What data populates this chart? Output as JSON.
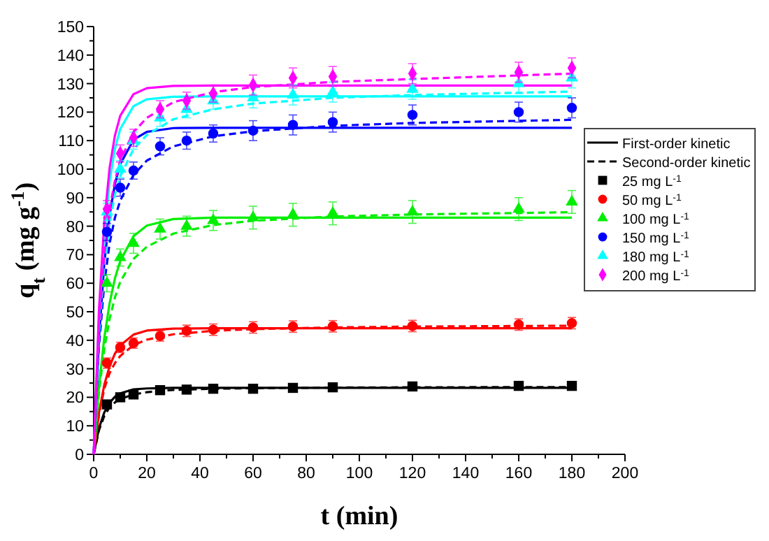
{
  "chart_data": {
    "type": "scatter",
    "xlabel": "t (min)",
    "ylabel": "q$_{t}$ (mg g$^{-1}$)",
    "xlim": [
      0,
      200
    ],
    "ylim": [
      0,
      150
    ],
    "xticks": [
      0,
      20,
      40,
      60,
      80,
      100,
      120,
      140,
      160,
      180,
      200
    ],
    "yticks": [
      0,
      10,
      20,
      30,
      40,
      50,
      60,
      70,
      80,
      90,
      100,
      110,
      120,
      130,
      140,
      150
    ],
    "grid": false,
    "legend": "right",
    "series": [
      {
        "type": "line",
        "name": "First-order kinetic",
        "color": "#000000",
        "line_style": "solid",
        "x": [
          0,
          2,
          4,
          6,
          8,
          10,
          15,
          20,
          30,
          45,
          60,
          90,
          120,
          180
        ],
        "values": [
          0,
          9.2,
          14.7,
          18.1,
          20.2,
          21.4,
          22.8,
          23.1,
          23.3,
          23.3,
          23.3,
          23.3,
          23.3,
          23.3
        ]
      },
      {
        "type": "line",
        "name": "Second-order kinetic",
        "color": "#000000",
        "line_style": "dashed",
        "x": [
          0,
          2,
          4,
          6,
          8,
          10,
          15,
          20,
          30,
          45,
          60,
          90,
          120,
          180
        ],
        "values": [
          0,
          8.5,
          13.5,
          16.5,
          18.2,
          19.4,
          21.0,
          21.8,
          22.6,
          23.0,
          23.2,
          23.4,
          23.5,
          23.6
        ]
      },
      {
        "type": "line",
        "color": "#ff0000",
        "line_style": "solid",
        "x": [
          0,
          2,
          4,
          6,
          8,
          10,
          15,
          20,
          30,
          45,
          60,
          90,
          120,
          180
        ],
        "values": [
          0,
          14.6,
          24.4,
          30.9,
          35.3,
          38.2,
          42.0,
          43.4,
          44.1,
          44.2,
          44.2,
          44.2,
          44.2,
          44.2
        ]
      },
      {
        "type": "line",
        "color": "#ff0000",
        "line_style": "dashed",
        "x": [
          0,
          2,
          4,
          6,
          8,
          10,
          15,
          20,
          30,
          45,
          60,
          90,
          120,
          180
        ],
        "values": [
          0,
          14,
          23,
          28.5,
          32,
          34.5,
          38.3,
          40.2,
          42.1,
          43.3,
          43.9,
          44.5,
          44.8,
          45.1
        ]
      },
      {
        "type": "line",
        "color": "#00ee00",
        "line_style": "solid",
        "x": [
          0,
          2,
          4,
          6,
          8,
          10,
          15,
          20,
          30,
          45,
          60,
          90,
          120,
          180
        ],
        "values": [
          0,
          23.9,
          40.9,
          53.0,
          61.7,
          67.8,
          76.5,
          80.2,
          82.5,
          83,
          83,
          83,
          83,
          83
        ]
      },
      {
        "type": "line",
        "color": "#00ee00",
        "line_style": "dashed",
        "x": [
          0,
          2,
          4,
          6,
          8,
          10,
          15,
          20,
          30,
          45,
          60,
          90,
          120,
          180
        ],
        "values": [
          0,
          22,
          37,
          47.5,
          55,
          60.5,
          68.5,
          72.8,
          77.4,
          80.4,
          81.9,
          83.4,
          84.1,
          84.9
        ]
      },
      {
        "type": "line",
        "color": "#0000ff",
        "line_style": "solid",
        "x": [
          0,
          2,
          4,
          6,
          8,
          10,
          15,
          20,
          30,
          45,
          60,
          90,
          120,
          180
        ],
        "values": [
          0,
          40.8,
          67.0,
          83.9,
          94.8,
          101.8,
          110.3,
          113.1,
          114.4,
          114.5,
          114.5,
          114.5,
          114.5,
          114.5
        ]
      },
      {
        "type": "line",
        "color": "#0000ff",
        "line_style": "dashed",
        "x": [
          0,
          2,
          4,
          6,
          8,
          10,
          15,
          20,
          30,
          45,
          60,
          90,
          120,
          180
        ],
        "values": [
          0,
          38,
          60,
          74,
          83,
          89,
          98,
          103,
          108,
          111.5,
          113.3,
          115.2,
          116.2,
          117.3
        ]
      },
      {
        "type": "line",
        "color": "#00ffff",
        "line_style": "solid",
        "x": [
          0,
          2,
          4,
          6,
          8,
          10,
          15,
          20,
          30,
          45,
          60,
          90,
          120,
          180
        ],
        "values": [
          0,
          47.8,
          77.4,
          95.8,
          107.1,
          114.1,
          122.1,
          124.5,
          125.4,
          125.5,
          125.5,
          125.5,
          125.5,
          125.5
        ]
      },
      {
        "type": "line",
        "color": "#00ffff",
        "line_style": "dashed",
        "x": [
          0,
          2,
          4,
          6,
          8,
          10,
          15,
          20,
          30,
          45,
          60,
          90,
          120,
          180
        ],
        "values": [
          0,
          42,
          66,
          81,
          91,
          97.5,
          107,
          112,
          117.5,
          121,
          123,
          125,
          126,
          127.2
        ]
      },
      {
        "type": "line",
        "color": "#ff00ff",
        "line_style": "solid",
        "x": [
          0,
          2,
          4,
          6,
          8,
          10,
          15,
          20,
          30,
          45,
          60,
          90,
          120,
          180
        ],
        "values": [
          0,
          50.8,
          81.7,
          100.5,
          111.8,
          118.7,
          126.3,
          128.4,
          129.2,
          129.3,
          129.3,
          129.3,
          129.3,
          129.3
        ]
      },
      {
        "type": "line",
        "color": "#ff00ff",
        "line_style": "dashed",
        "x": [
          0,
          2,
          4,
          6,
          8,
          10,
          15,
          20,
          30,
          45,
          60,
          90,
          120,
          180
        ],
        "values": [
          0,
          45,
          70,
          86,
          96,
          103,
          113,
          118,
          123.5,
          127,
          128.8,
          130.6,
          131.6,
          133.5
        ]
      },
      {
        "name": "25 mg L$^{-1}$",
        "color": "#000000",
        "marker": "square",
        "x": [
          5,
          10,
          15,
          25,
          35,
          45,
          60,
          75,
          90,
          120,
          160,
          180
        ],
        "values": [
          17.5,
          20,
          21,
          22.5,
          22.7,
          23,
          23,
          23.3,
          23.5,
          23.8,
          24,
          24
        ],
        "errors": [
          0.8,
          0.8,
          0.8,
          0.8,
          0.8,
          0.8,
          0.8,
          0.8,
          0.8,
          0.8,
          0.8,
          0.8
        ]
      },
      {
        "name": "50 mg L$^{-1}$",
        "color": "#ff0000",
        "marker": "circle",
        "x": [
          5,
          10,
          15,
          25,
          35,
          45,
          60,
          75,
          90,
          120,
          160,
          180
        ],
        "values": [
          32,
          37.5,
          39,
          41.5,
          43.3,
          43.7,
          44.5,
          44.8,
          44.9,
          45,
          45.5,
          46
        ],
        "errors": [
          1.8,
          1.8,
          1.8,
          1.8,
          2,
          2,
          2,
          2,
          2,
          2,
          2,
          2
        ]
      },
      {
        "name": "100 mg L$^{-1}$",
        "color": "#00ee00",
        "marker": "triangle",
        "x": [
          5,
          10,
          15,
          25,
          35,
          45,
          60,
          75,
          90,
          120,
          160,
          180
        ],
        "values": [
          60,
          69,
          74,
          79,
          80,
          82,
          83,
          84,
          84.5,
          85,
          86,
          88.5
        ],
        "errors": [
          3,
          3,
          3.5,
          3.5,
          3.5,
          3.5,
          4,
          4,
          4,
          4,
          4,
          4
        ]
      },
      {
        "name": "150 mg L$^{-1}$",
        "color": "#0000ff",
        "marker": "circle",
        "x": [
          5,
          10,
          15,
          25,
          35,
          45,
          60,
          75,
          90,
          120,
          160,
          180
        ],
        "values": [
          78,
          93.5,
          99.5,
          108,
          110,
          112.5,
          113.5,
          115.5,
          116.5,
          119,
          120,
          121.5
        ],
        "errors": [
          3,
          3,
          3,
          3,
          3,
          3,
          3.5,
          3.5,
          3.5,
          3.5,
          3.5,
          3.5
        ]
      },
      {
        "name": "180 mg L$^{-1}$",
        "color": "#00ffff",
        "marker": "triangle",
        "x": [
          5,
          10,
          15,
          25,
          35,
          45,
          60,
          75,
          90,
          120,
          160,
          180
        ],
        "values": [
          85,
          100,
          110,
          118,
          121,
          124,
          125,
          126,
          127,
          128,
          130,
          132
        ],
        "errors": [
          3,
          3,
          3,
          3,
          3,
          3,
          3.5,
          3.5,
          3.5,
          3.5,
          3.5,
          3.5
        ]
      },
      {
        "name": "200 mg L$^{-1}$",
        "color": "#ff00ff",
        "marker": "diamond",
        "x": [
          5,
          10,
          15,
          25,
          35,
          45,
          60,
          75,
          90,
          120,
          160,
          180
        ],
        "values": [
          86,
          105.5,
          111,
          121,
          124,
          126.5,
          129.5,
          132,
          132.5,
          133.5,
          134,
          135.5
        ],
        "errors": [
          3,
          3,
          3,
          3,
          3,
          3,
          3.5,
          3.5,
          3.5,
          3.5,
          3.5,
          3.5
        ]
      }
    ]
  }
}
